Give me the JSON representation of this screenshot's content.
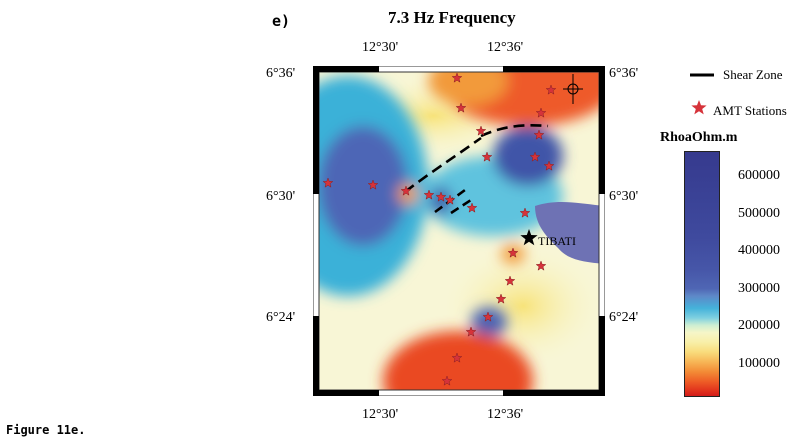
{
  "panel_label": "e)",
  "title": "7.3 Hz Frequency",
  "top_ticks": [
    "12°30'",
    "12°36'"
  ],
  "bottom_ticks": [
    "12°30'",
    "12°36'"
  ],
  "left_ticks": [
    "6°36'",
    "6°30'",
    "6°24'"
  ],
  "right_ticks": [
    "6°36'",
    "6°30'",
    "6°24'"
  ],
  "legend": {
    "shear_zone": "Shear Zone",
    "amt_stations": "AMT Stations"
  },
  "town_label": "TIBATI",
  "colorbar": {
    "title": "RhoaOhm.m",
    "ticks": [
      "600000",
      "500000",
      "400000",
      "300000",
      "200000",
      "100000"
    ]
  },
  "caption": "Figure 11e.",
  "colors": {
    "high": "#3b3f98",
    "mid": "#f6f6c8",
    "low": "#e8341c",
    "star": "#d6333a"
  }
}
